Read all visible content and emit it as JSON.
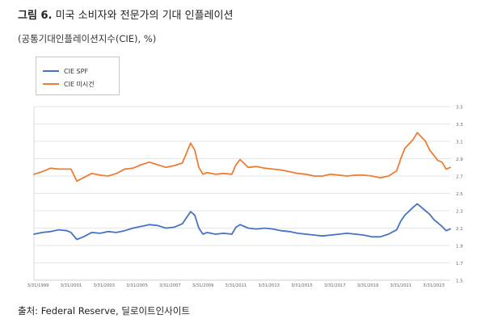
{
  "figure": {
    "number_label": "그림 6.",
    "title": "미국 소비자와 전문가의 기대 인플레이션",
    "subtitle": "(공통기대인플레이션지수(CIE), %)",
    "source": "출처: Federal Reserve, 딜로이트인사이트"
  },
  "colors": {
    "spf": "#4472c4",
    "mishigan": "#ed7d31",
    "grid": "#e6e6e6",
    "axis": "#999999"
  },
  "chart_data": {
    "type": "line",
    "title": "",
    "xlabel": "",
    "ylabel": "",
    "ylim": [
      1.5,
      3.5
    ],
    "yticks": [
      1.5,
      1.7,
      1.9,
      2.1,
      2.3,
      2.5,
      2.7,
      2.9,
      3.1,
      3.3,
      3.5
    ],
    "ytick_labels": [
      "1.5",
      "1.7",
      "1.9",
      "2.1",
      "2.3",
      "2.5",
      "2.7",
      "2.9",
      "3.1",
      "3.3",
      "3.5"
    ],
    "xlim": [
      1999.0,
      2024.25
    ],
    "xticks": [
      1999.25,
      2001.25,
      2003.25,
      2005.25,
      2007.25,
      2009.25,
      2011.25,
      2013.25,
      2015.25,
      2017.25,
      2019.25,
      2021.25,
      2023.25
    ],
    "xtick_labels": [
      "3/31/1999",
      "3/31/2001",
      "3/31/2003",
      "3/31/2005",
      "3/31/2007",
      "3/31/2009",
      "3/31/2011",
      "3/31/2013",
      "3/31/2015",
      "3/31/2017",
      "3/31/2019",
      "3/31/2021",
      "3/31/2023"
    ],
    "grid": true,
    "legend_position": "top-left",
    "series": [
      {
        "name": "CIE SPF",
        "color": "#4472c4",
        "points": [
          [
            1999.0,
            2.03
          ],
          [
            1999.5,
            2.05
          ],
          [
            2000.0,
            2.06
          ],
          [
            2000.5,
            2.08
          ],
          [
            2001.0,
            2.07
          ],
          [
            2001.25,
            2.05
          ],
          [
            2001.6,
            1.97
          ],
          [
            2002.0,
            2.0
          ],
          [
            2002.5,
            2.05
          ],
          [
            2003.0,
            2.04
          ],
          [
            2003.5,
            2.06
          ],
          [
            2004.0,
            2.05
          ],
          [
            2004.5,
            2.07
          ],
          [
            2005.0,
            2.1
          ],
          [
            2005.5,
            2.12
          ],
          [
            2006.0,
            2.14
          ],
          [
            2006.5,
            2.13
          ],
          [
            2007.0,
            2.1
          ],
          [
            2007.5,
            2.11
          ],
          [
            2008.0,
            2.15
          ],
          [
            2008.5,
            2.29
          ],
          [
            2008.75,
            2.25
          ],
          [
            2009.0,
            2.1
          ],
          [
            2009.25,
            2.03
          ],
          [
            2009.5,
            2.05
          ],
          [
            2010.0,
            2.03
          ],
          [
            2010.5,
            2.04
          ],
          [
            2011.0,
            2.03
          ],
          [
            2011.25,
            2.11
          ],
          [
            2011.5,
            2.14
          ],
          [
            2012.0,
            2.1
          ],
          [
            2012.5,
            2.09
          ],
          [
            2013.0,
            2.1
          ],
          [
            2013.5,
            2.09
          ],
          [
            2014.0,
            2.07
          ],
          [
            2014.5,
            2.06
          ],
          [
            2015.0,
            2.04
          ],
          [
            2015.5,
            2.03
          ],
          [
            2016.0,
            2.02
          ],
          [
            2016.5,
            2.01
          ],
          [
            2017.0,
            2.02
          ],
          [
            2017.5,
            2.03
          ],
          [
            2018.0,
            2.04
          ],
          [
            2018.5,
            2.03
          ],
          [
            2019.0,
            2.02
          ],
          [
            2019.5,
            2.0
          ],
          [
            2020.0,
            2.0
          ],
          [
            2020.5,
            2.03
          ],
          [
            2021.0,
            2.08
          ],
          [
            2021.25,
            2.18
          ],
          [
            2021.5,
            2.25
          ],
          [
            2022.0,
            2.34
          ],
          [
            2022.25,
            2.38
          ],
          [
            2022.5,
            2.34
          ],
          [
            2022.75,
            2.3
          ],
          [
            2023.0,
            2.26
          ],
          [
            2023.25,
            2.2
          ],
          [
            2023.5,
            2.16
          ],
          [
            2023.75,
            2.12
          ],
          [
            2024.0,
            2.07
          ],
          [
            2024.25,
            2.09
          ]
        ]
      },
      {
        "name": "CIE 미시건",
        "color": "#ed7d31",
        "points": [
          [
            1999.0,
            2.72
          ],
          [
            1999.5,
            2.75
          ],
          [
            2000.0,
            2.79
          ],
          [
            2000.5,
            2.78
          ],
          [
            2001.0,
            2.78
          ],
          [
            2001.25,
            2.78
          ],
          [
            2001.6,
            2.64
          ],
          [
            2002.0,
            2.68
          ],
          [
            2002.5,
            2.73
          ],
          [
            2003.0,
            2.71
          ],
          [
            2003.5,
            2.7
          ],
          [
            2004.0,
            2.73
          ],
          [
            2004.5,
            2.78
          ],
          [
            2005.0,
            2.79
          ],
          [
            2005.5,
            2.83
          ],
          [
            2006.0,
            2.86
          ],
          [
            2006.5,
            2.83
          ],
          [
            2007.0,
            2.8
          ],
          [
            2007.5,
            2.82
          ],
          [
            2008.0,
            2.85
          ],
          [
            2008.5,
            3.08
          ],
          [
            2008.75,
            3.0
          ],
          [
            2009.0,
            2.8
          ],
          [
            2009.25,
            2.72
          ],
          [
            2009.5,
            2.74
          ],
          [
            2010.0,
            2.72
          ],
          [
            2010.5,
            2.73
          ],
          [
            2011.0,
            2.72
          ],
          [
            2011.25,
            2.83
          ],
          [
            2011.5,
            2.89
          ],
          [
            2012.0,
            2.8
          ],
          [
            2012.5,
            2.81
          ],
          [
            2013.0,
            2.79
          ],
          [
            2013.5,
            2.78
          ],
          [
            2014.0,
            2.77
          ],
          [
            2014.5,
            2.75
          ],
          [
            2015.0,
            2.73
          ],
          [
            2015.5,
            2.72
          ],
          [
            2016.0,
            2.7
          ],
          [
            2016.5,
            2.7
          ],
          [
            2017.0,
            2.72
          ],
          [
            2017.5,
            2.71
          ],
          [
            2018.0,
            2.7
          ],
          [
            2018.5,
            2.71
          ],
          [
            2019.0,
            2.71
          ],
          [
            2019.5,
            2.7
          ],
          [
            2020.0,
            2.68
          ],
          [
            2020.5,
            2.7
          ],
          [
            2021.0,
            2.76
          ],
          [
            2021.25,
            2.9
          ],
          [
            2021.5,
            3.02
          ],
          [
            2022.0,
            3.12
          ],
          [
            2022.25,
            3.2
          ],
          [
            2022.5,
            3.15
          ],
          [
            2022.75,
            3.1
          ],
          [
            2023.0,
            3.0
          ],
          [
            2023.25,
            2.94
          ],
          [
            2023.5,
            2.88
          ],
          [
            2023.75,
            2.86
          ],
          [
            2024.0,
            2.78
          ],
          [
            2024.25,
            2.8
          ]
        ]
      }
    ]
  }
}
